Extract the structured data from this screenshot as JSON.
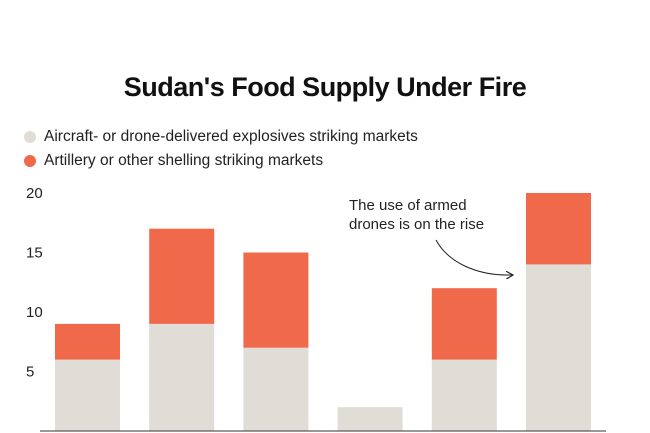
{
  "chart_data": {
    "type": "bar",
    "stacked": true,
    "title": "Sudan's Food Supply Under Fire",
    "xlabel": "",
    "ylabel": "",
    "categories": [
      "",
      "",
      "",
      "",
      "",
      ""
    ],
    "series": [
      {
        "name": "Aircraft- or drone-delivered explosives striking markets",
        "color": "#e0dcd6",
        "values": [
          6,
          9,
          7,
          2,
          6,
          14
        ]
      },
      {
        "name": "Artillery or other shelling striking markets",
        "color": "#f0694b",
        "values": [
          3,
          8,
          8,
          0,
          6,
          6
        ]
      }
    ],
    "ylim": [
      0,
      20
    ],
    "yticks": [
      5,
      10,
      15,
      20
    ],
    "grid": false,
    "legend_position": "top-left",
    "annotation": {
      "lines": [
        "The use of armed",
        "drones is on the rise"
      ],
      "target_category_index": 5
    }
  }
}
